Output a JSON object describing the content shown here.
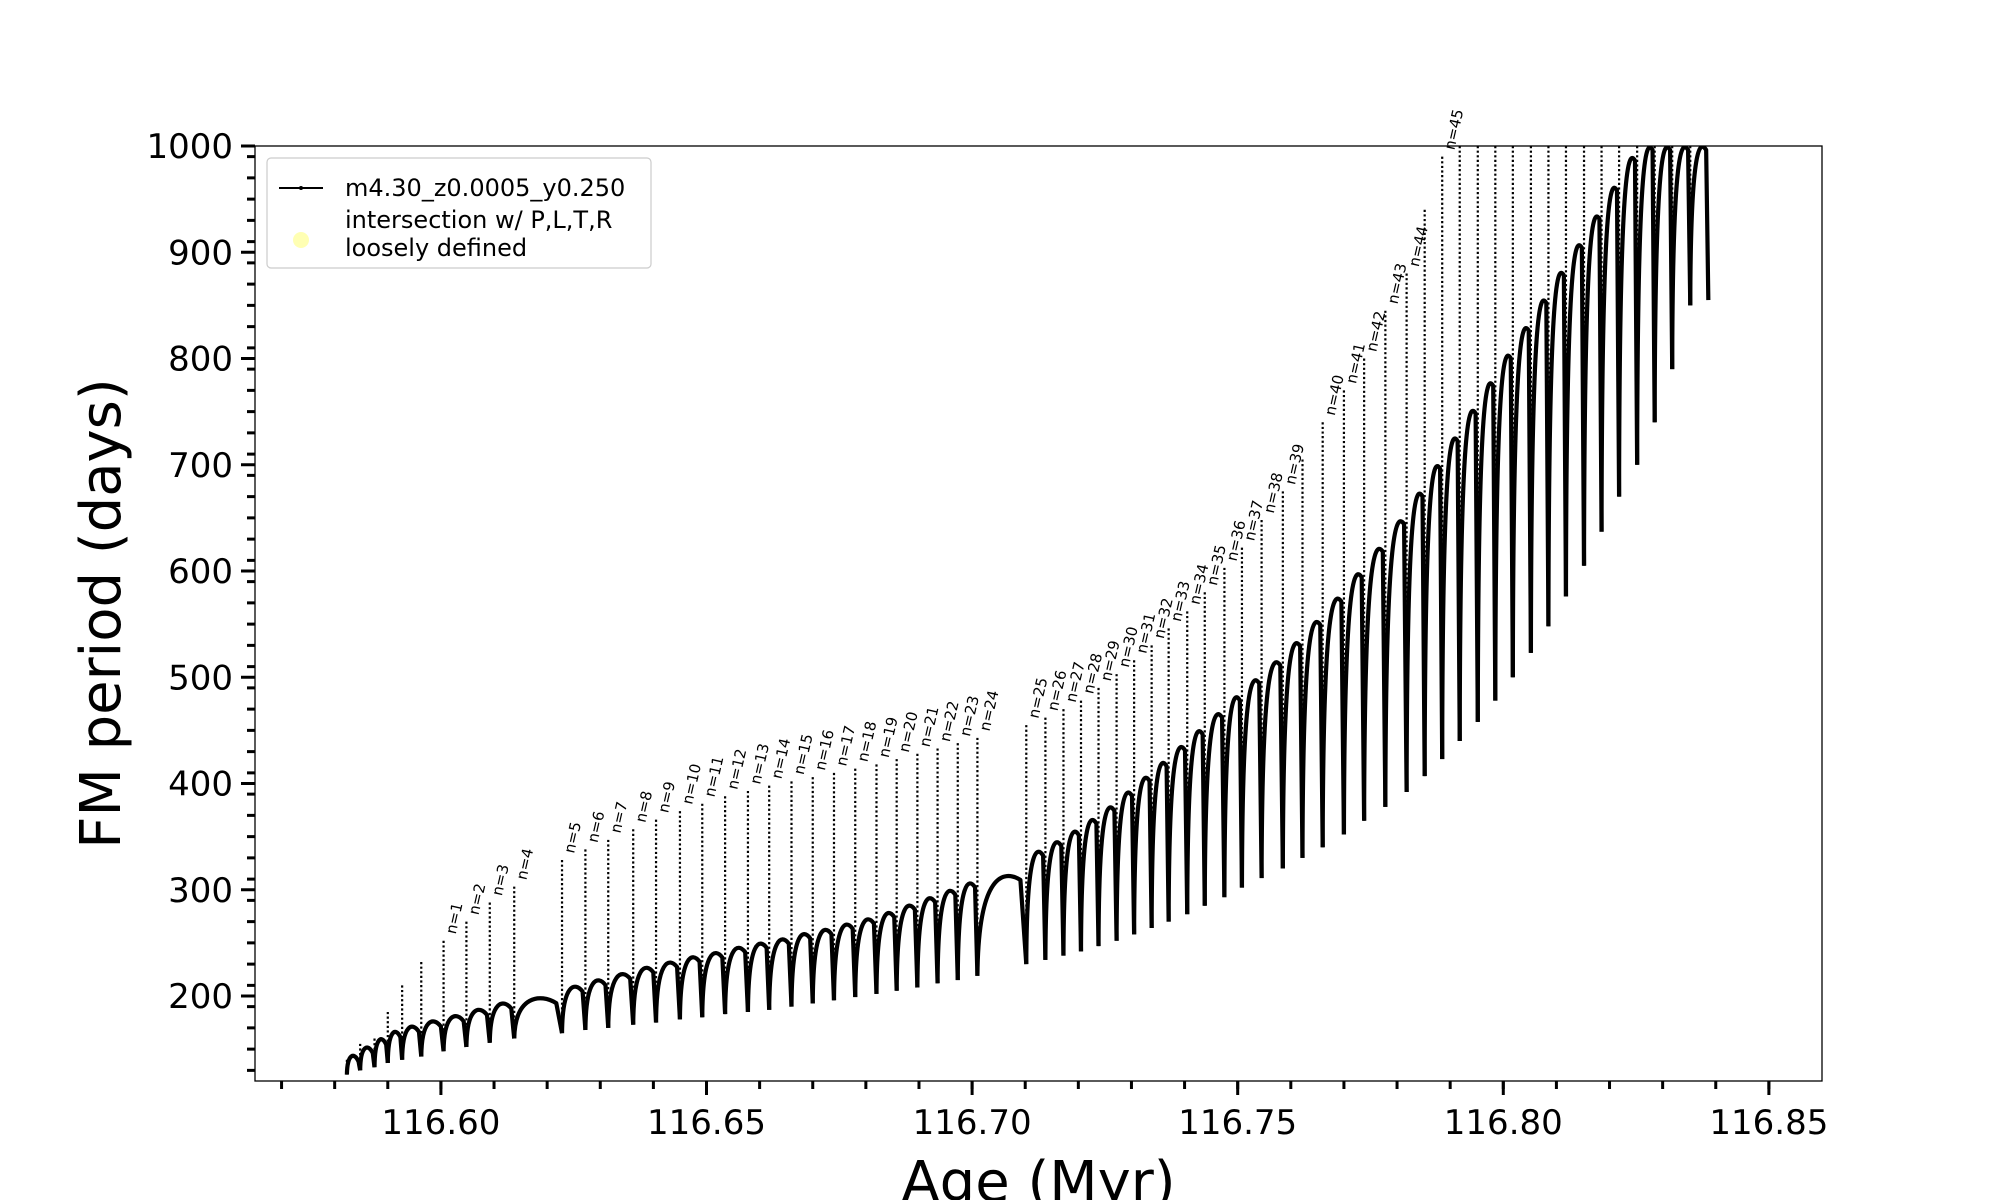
{
  "chart_data": {
    "type": "line",
    "xlabel": "Age (Myr)",
    "ylabel": "FM period (days)",
    "xlim": [
      116.565,
      116.86
    ],
    "ylim": [
      120,
      1000
    ],
    "x_ticks": [
      116.6,
      116.65,
      116.7,
      116.75,
      116.8,
      116.85
    ],
    "x_tick_labels": [
      "116.60",
      "116.65",
      "116.70",
      "116.75",
      "116.80",
      "116.85"
    ],
    "y_ticks": [
      200,
      300,
      400,
      500,
      600,
      700,
      800,
      900,
      1000
    ],
    "y_tick_labels": [
      "200",
      "300",
      "400",
      "500",
      "600",
      "700",
      "800",
      "900",
      "1000"
    ],
    "grid": false,
    "legend_position": "top-left",
    "legend": [
      {
        "label": "m4.30_z0.0005_y0.250",
        "marker": "line-dot",
        "color": "#000000"
      },
      {
        "label": "intersection w/ P,L,T,R\nloosely defined",
        "marker": "circle",
        "color": "#ffffb3"
      }
    ],
    "series": [
      {
        "name": "m4.30_z0.0005_y0.250",
        "color": "#000000",
        "pulses": [
          {
            "x": 116.5823,
            "spike": 140,
            "base": 142,
            "floor": 126
          },
          {
            "x": 116.5848,
            "spike": 155,
            "base": 150,
            "floor": 130
          },
          {
            "x": 116.5875,
            "spike": 160,
            "base": 158,
            "floor": 133
          },
          {
            "x": 116.59,
            "spike": 185,
            "base": 165,
            "floor": 137
          },
          {
            "x": 116.5927,
            "spike": 210,
            "base": 170,
            "floor": 140
          },
          {
            "x": 116.5963,
            "spike": 232,
            "base": 175,
            "floor": 143
          },
          {
            "x": 116.6005,
            "spike": 252,
            "base": 180,
            "floor": 148,
            "label": "n=1"
          },
          {
            "x": 116.6048,
            "spike": 270,
            "base": 186,
            "floor": 152,
            "label": "n=2"
          },
          {
            "x": 116.6092,
            "spike": 288,
            "base": 192,
            "floor": 156,
            "label": "n=3"
          },
          {
            "x": 116.6138,
            "spike": 303,
            "base": 197,
            "floor": 160,
            "label": "n=4"
          },
          {
            "x": 116.6228,
            "spike": 328,
            "base": 208,
            "floor": 165,
            "label": "n=5"
          },
          {
            "x": 116.6272,
            "spike": 338,
            "base": 214,
            "floor": 168,
            "label": "n=6"
          },
          {
            "x": 116.6315,
            "spike": 347,
            "base": 220,
            "floor": 170,
            "label": "n=7"
          },
          {
            "x": 116.6362,
            "spike": 357,
            "base": 226,
            "floor": 173,
            "label": "n=8"
          },
          {
            "x": 116.6405,
            "spike": 366,
            "base": 231,
            "floor": 175,
            "label": "n=9"
          },
          {
            "x": 116.645,
            "spike": 374,
            "base": 236,
            "floor": 178,
            "label": "n=10"
          },
          {
            "x": 116.6492,
            "spike": 381,
            "base": 240,
            "floor": 180,
            "label": "n=11"
          },
          {
            "x": 116.6535,
            "spike": 388,
            "base": 245,
            "floor": 183,
            "label": "n=12"
          },
          {
            "x": 116.6578,
            "spike": 393,
            "base": 249,
            "floor": 185,
            "label": "n=13"
          },
          {
            "x": 116.6618,
            "spike": 398,
            "base": 253,
            "floor": 187,
            "label": "n=14"
          },
          {
            "x": 116.666,
            "spike": 402,
            "base": 258,
            "floor": 190,
            "label": "n=15"
          },
          {
            "x": 116.67,
            "spike": 406,
            "base": 262,
            "floor": 193,
            "label": "n=16"
          },
          {
            "x": 116.674,
            "spike": 410,
            "base": 267,
            "floor": 196,
            "label": "n=17"
          },
          {
            "x": 116.678,
            "spike": 414,
            "base": 272,
            "floor": 199,
            "label": "n=18"
          },
          {
            "x": 116.682,
            "spike": 418,
            "base": 278,
            "floor": 202,
            "label": "n=19"
          },
          {
            "x": 116.6858,
            "spike": 423,
            "base": 285,
            "floor": 205,
            "label": "n=20"
          },
          {
            "x": 116.6897,
            "spike": 428,
            "base": 292,
            "floor": 208,
            "label": "n=21"
          },
          {
            "x": 116.6935,
            "spike": 433,
            "base": 299,
            "floor": 212,
            "label": "n=22"
          },
          {
            "x": 116.6973,
            "spike": 438,
            "base": 306,
            "floor": 215,
            "label": "n=23"
          },
          {
            "x": 116.701,
            "spike": 443,
            "base": 313,
            "floor": 219,
            "label": "n=24"
          },
          {
            "x": 116.7102,
            "spike": 455,
            "base": 336,
            "floor": 230,
            "label": "n=25"
          },
          {
            "x": 116.7138,
            "spike": 462,
            "base": 345,
            "floor": 234,
            "label": "n=26"
          },
          {
            "x": 116.7172,
            "spike": 470,
            "base": 355,
            "floor": 238,
            "label": "n=27"
          },
          {
            "x": 116.7205,
            "spike": 478,
            "base": 366,
            "floor": 242,
            "label": "n=28"
          },
          {
            "x": 116.7238,
            "spike": 490,
            "base": 378,
            "floor": 247,
            "label": "n=29"
          },
          {
            "x": 116.7272,
            "spike": 503,
            "base": 392,
            "floor": 252,
            "label": "n=30"
          },
          {
            "x": 116.7305,
            "spike": 516,
            "base": 406,
            "floor": 258,
            "label": "n=31"
          },
          {
            "x": 116.7338,
            "spike": 530,
            "base": 420,
            "floor": 264,
            "label": "n=32"
          },
          {
            "x": 116.737,
            "spike": 546,
            "base": 435,
            "floor": 270,
            "label": "n=33"
          },
          {
            "x": 116.7405,
            "spike": 562,
            "base": 450,
            "floor": 277,
            "label": "n=34"
          },
          {
            "x": 116.7438,
            "spike": 580,
            "base": 466,
            "floor": 285,
            "label": "n=35"
          },
          {
            "x": 116.7475,
            "spike": 603,
            "base": 482,
            "floor": 293,
            "label": "n=36"
          },
          {
            "x": 116.7508,
            "spike": 622,
            "base": 498,
            "floor": 302,
            "label": "n=37"
          },
          {
            "x": 116.7545,
            "spike": 648,
            "base": 515,
            "floor": 311,
            "label": "n=38"
          },
          {
            "x": 116.7585,
            "spike": 675,
            "base": 533,
            "floor": 320,
            "label": "n=39"
          },
          {
            "x": 116.7622,
            "spike": 705,
            "base": 553,
            "floor": 330
          },
          {
            "x": 116.766,
            "spike": 740,
            "base": 575,
            "floor": 340,
            "label": "n=40"
          },
          {
            "x": 116.77,
            "spike": 770,
            "base": 598,
            "floor": 352,
            "label": "n=41"
          },
          {
            "x": 116.7738,
            "spike": 800,
            "base": 622,
            "floor": 365,
            "label": "n=42"
          },
          {
            "x": 116.7778,
            "spike": 845,
            "base": 648,
            "floor": 378,
            "label": "n=43"
          },
          {
            "x": 116.7818,
            "spike": 880,
            "base": 674,
            "floor": 392,
            "label": "n=44"
          },
          {
            "x": 116.7852,
            "spike": 940,
            "base": 700,
            "floor": 407
          },
          {
            "x": 116.7885,
            "spike": 990,
            "base": 726,
            "floor": 423,
            "label": "n=45"
          },
          {
            "x": 116.7918,
            "spike": 1000,
            "base": 752,
            "floor": 440
          },
          {
            "x": 116.7952,
            "spike": 1000,
            "base": 778,
            "floor": 458
          },
          {
            "x": 116.7985,
            "spike": 1000,
            "base": 804,
            "floor": 478
          },
          {
            "x": 116.8018,
            "spike": 1000,
            "base": 830,
            "floor": 500
          },
          {
            "x": 116.8052,
            "spike": 1000,
            "base": 856,
            "floor": 523
          },
          {
            "x": 116.8085,
            "spike": 1000,
            "base": 882,
            "floor": 548
          },
          {
            "x": 116.8118,
            "spike": 1000,
            "base": 908,
            "floor": 576
          },
          {
            "x": 116.8152,
            "spike": 1000,
            "base": 935,
            "floor": 605
          },
          {
            "x": 116.8185,
            "spike": 1000,
            "base": 962,
            "floor": 637
          },
          {
            "x": 116.8218,
            "spike": 1000,
            "base": 990,
            "floor": 670
          },
          {
            "x": 116.8252,
            "spike": 1000,
            "base": 1000,
            "floor": 700
          },
          {
            "x": 116.8285,
            "spike": 1000,
            "base": 1000,
            "floor": 740
          },
          {
            "x": 116.8318,
            "spike": 1000,
            "base": 1000,
            "floor": 790
          },
          {
            "x": 116.8352,
            "spike": 1000,
            "base": 1000,
            "floor": 850
          }
        ]
      }
    ]
  }
}
